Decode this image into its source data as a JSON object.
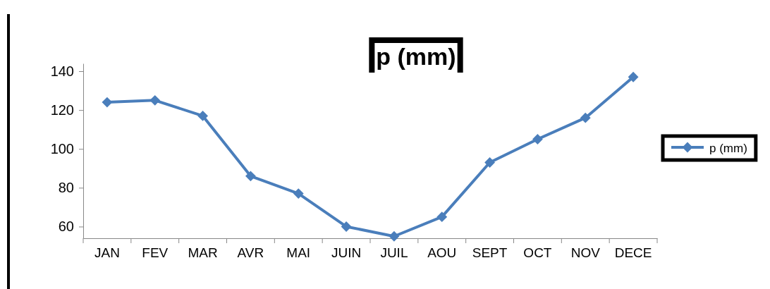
{
  "chart_data": {
    "type": "line",
    "title": "p (mm)",
    "categories": [
      "JAN",
      "FEV",
      "MAR",
      "AVR",
      "MAI",
      "JUIN",
      "JUIL",
      "AOU",
      "SEPT",
      "OCT",
      "NOV",
      "DECE"
    ],
    "series": [
      {
        "name": "p (mm)",
        "color": "#4a7ebb",
        "values": [
          124,
          125,
          117,
          86,
          77,
          60,
          55,
          65,
          93,
          105,
          116,
          137
        ]
      }
    ],
    "ylim": [
      54,
      144
    ],
    "yticks": [
      60,
      80,
      100,
      120,
      140
    ],
    "marker": "diamond",
    "legend": "right",
    "grid": false
  }
}
